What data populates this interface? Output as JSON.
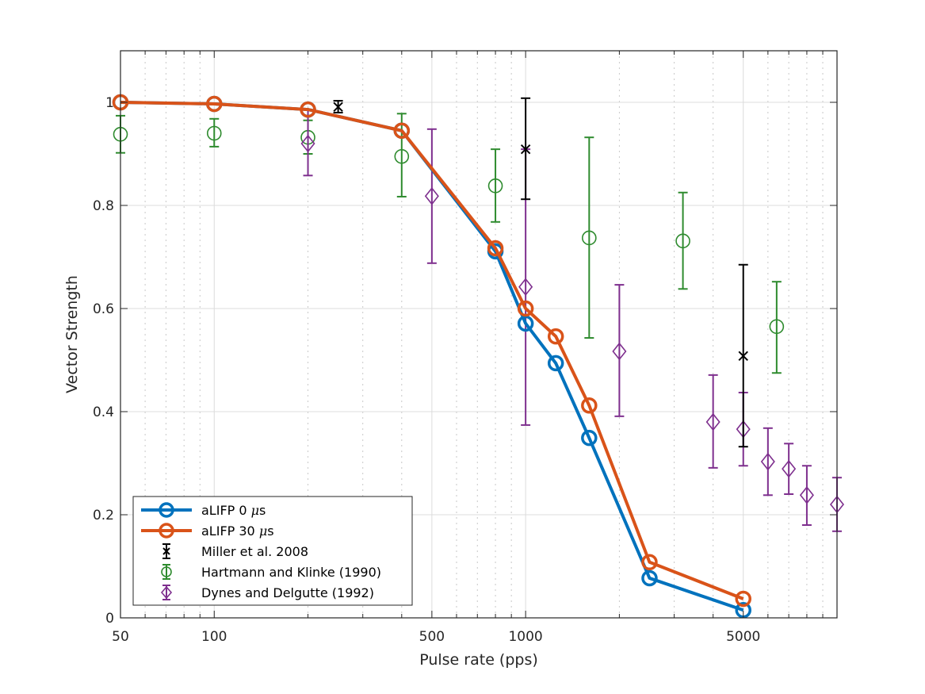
{
  "chart_data": {
    "type": "line",
    "title": "",
    "xlabel": "Pulse rate (pps)",
    "ylabel": "Vector Strength",
    "xscale": "log",
    "xlim": [
      50,
      10000
    ],
    "ylim": [
      0,
      1.1
    ],
    "grid": true,
    "minor_grid": true,
    "legend_position": "bottom-left",
    "xticks": [
      50,
      100,
      500,
      1000,
      5000
    ],
    "xtick_labels": [
      "50",
      "100",
      "500",
      "1000",
      "5000"
    ],
    "yticks": [
      0,
      0.2,
      0.4,
      0.6,
      0.8,
      1
    ],
    "ytick_labels": [
      "0",
      "0.2",
      "0.4",
      "0.6",
      "0.8",
      "1"
    ],
    "series": [
      {
        "name": "aLIFP 0 μs",
        "legend_label": "aLIFP 0 ",
        "legend_unit": "μs",
        "style": "line-circle",
        "color": "#0072BD",
        "x": [
          50,
          100,
          200,
          400,
          800,
          1000,
          1250,
          1600,
          2500,
          5000
        ],
        "y": [
          1.0,
          0.997,
          0.986,
          0.945,
          0.711,
          0.571,
          0.494,
          0.349,
          0.077,
          0.015
        ]
      },
      {
        "name": "aLIFP 30 μs",
        "legend_label": "aLIFP 30 ",
        "legend_unit": "μs",
        "style": "line-circle",
        "color": "#D95319",
        "x": [
          50,
          100,
          200,
          400,
          800,
          1000,
          1250,
          1600,
          2500,
          5000
        ],
        "y": [
          1.0,
          0.997,
          0.986,
          0.945,
          0.717,
          0.6,
          0.546,
          0.412,
          0.108,
          0.037
        ]
      },
      {
        "name": "Miller et al. 2008",
        "legend_label": "Miller et al. 2008",
        "style": "errorbar-x",
        "color": "#000000",
        "x": [
          250,
          1000,
          5000
        ],
        "y": [
          0.991,
          0.909,
          0.508
        ],
        "y_upper": [
          1.003,
          1.008,
          0.685
        ],
        "y_lower": [
          0.98,
          0.812,
          0.332
        ]
      },
      {
        "name": "Hartmann and Klinke (1990)",
        "legend_label": "Hartmann and Klinke (1990)",
        "style": "errorbar-circle",
        "color": "#2E8B2E",
        "x": [
          50,
          100,
          200,
          400,
          800,
          1600,
          3200,
          6400
        ],
        "y": [
          0.938,
          0.94,
          0.932,
          0.895,
          0.838,
          0.737,
          0.731,
          0.565
        ],
        "y_upper": [
          0.974,
          0.968,
          0.965,
          0.978,
          0.909,
          0.932,
          0.825,
          0.652
        ],
        "y_lower": [
          0.902,
          0.914,
          0.9,
          0.817,
          0.768,
          0.543,
          0.638,
          0.475
        ]
      },
      {
        "name": "Dynes and Delgutte (1992)",
        "legend_label": "Dynes and Delgutte (1992)",
        "style": "errorbar-diamond",
        "color": "#7E2F8E",
        "x": [
          200,
          500,
          1000,
          2000,
          4000,
          5000,
          6000,
          7000,
          8000,
          10000
        ],
        "y": [
          0.92,
          0.818,
          0.642,
          0.517,
          0.38,
          0.366,
          0.303,
          0.289,
          0.238,
          0.22
        ],
        "y_upper": [
          0.986,
          0.948,
          0.909,
          0.646,
          0.471,
          0.437,
          0.368,
          0.338,
          0.295,
          0.272
        ],
        "y_lower": [
          0.858,
          0.688,
          0.374,
          0.391,
          0.291,
          0.295,
          0.238,
          0.24,
          0.18,
          0.168
        ]
      }
    ]
  }
}
